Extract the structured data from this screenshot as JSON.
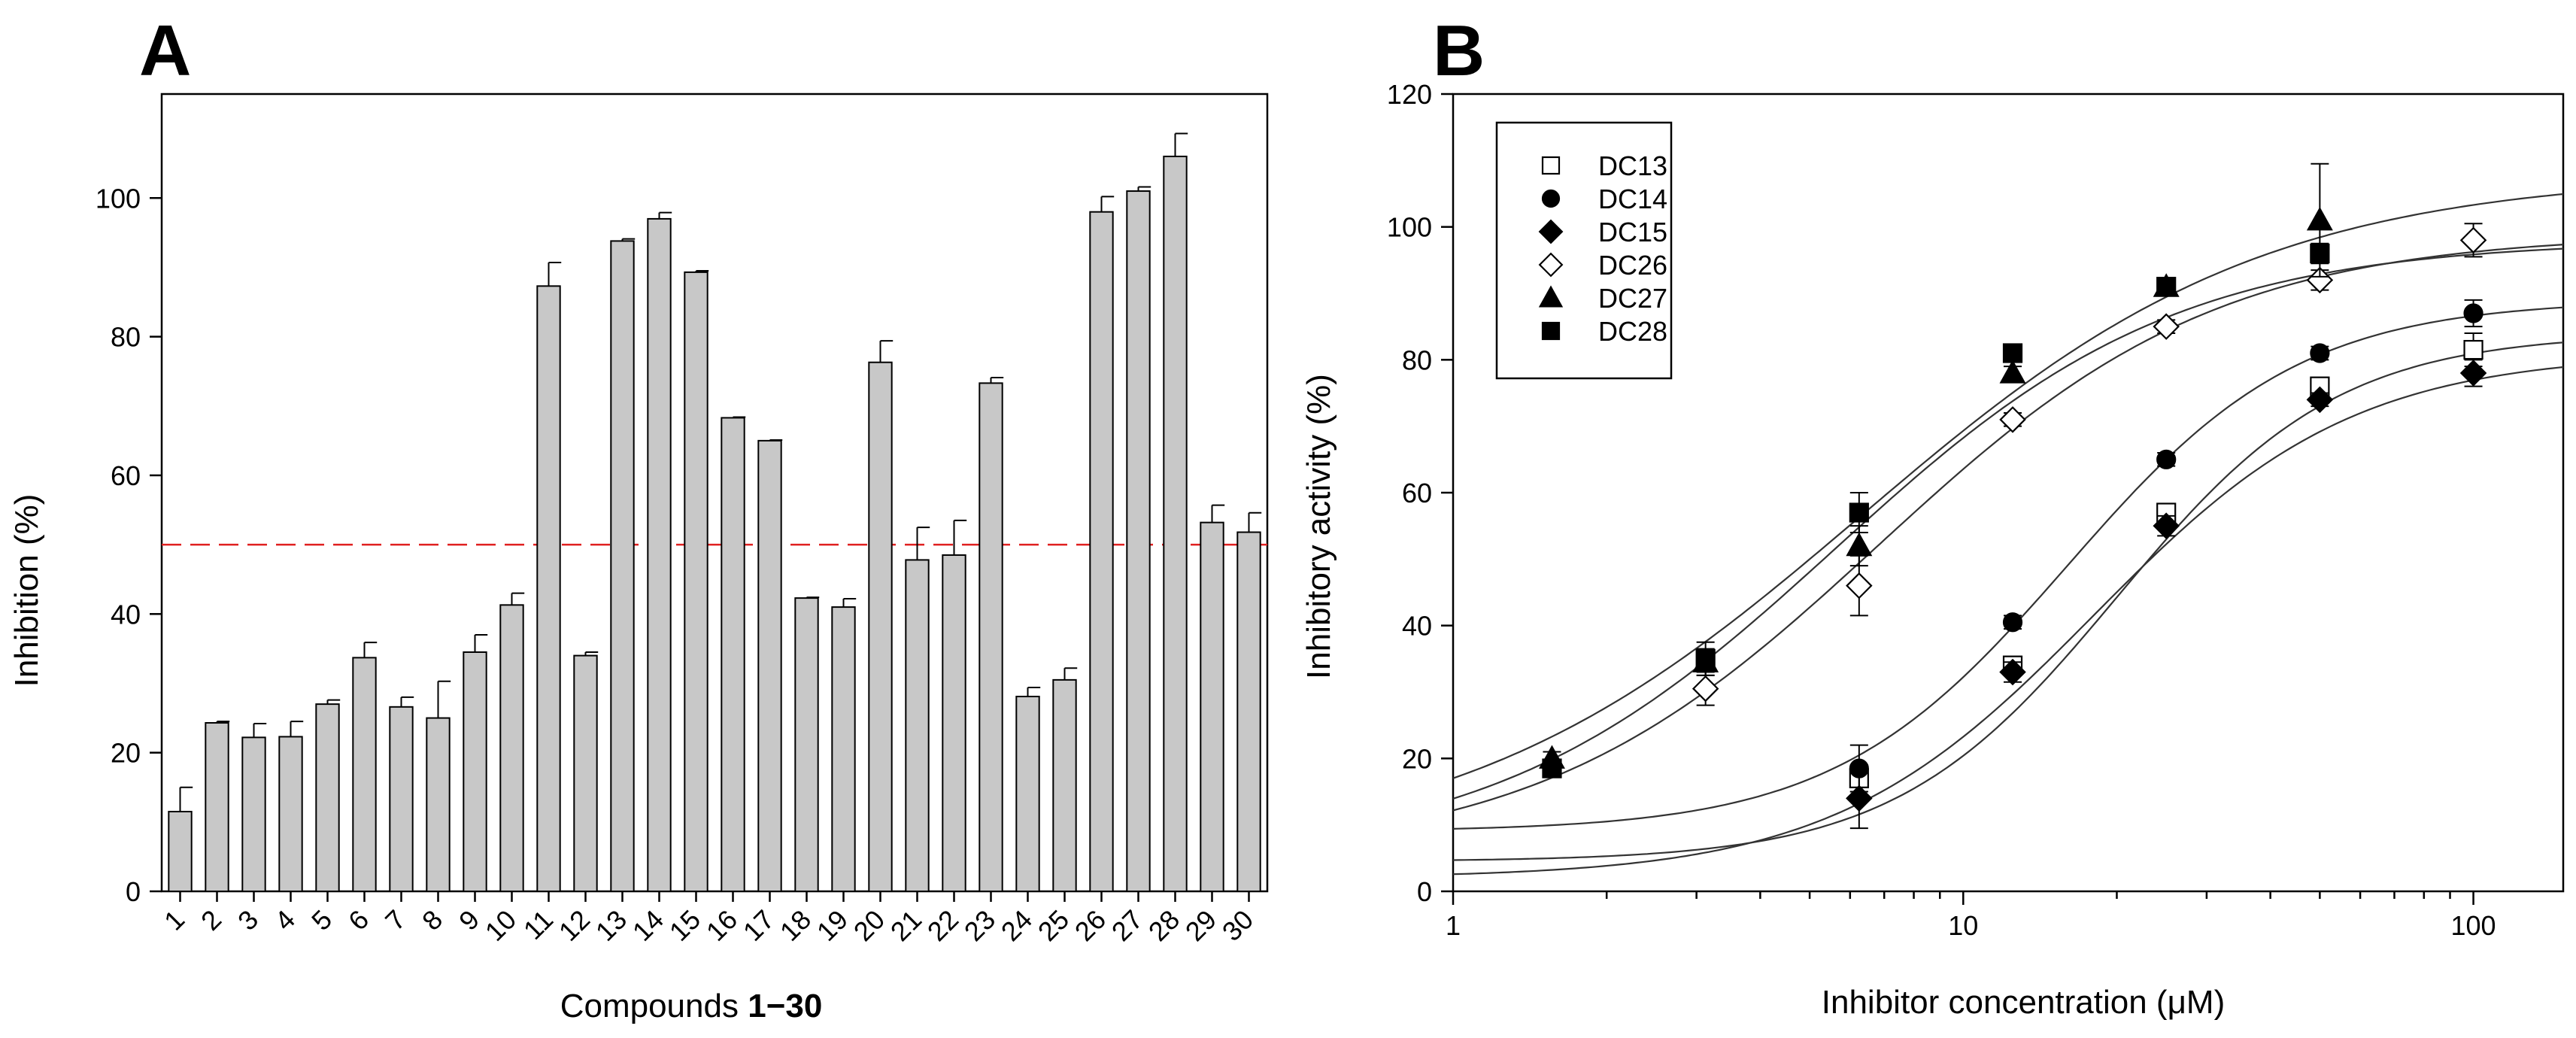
{
  "chart_data": [
    {
      "panel": "A",
      "type": "bar",
      "xlabel_prefix": "Compounds ",
      "xlabel_bold": "1−30",
      "ylabel": "Inhibition (%)",
      "ylim": [
        0,
        115
      ],
      "yticks": [
        0,
        20,
        40,
        60,
        80,
        100
      ],
      "categories": [
        "1",
        "2",
        "3",
        "4",
        "5",
        "6",
        "7",
        "8",
        "9",
        "10",
        "11",
        "12",
        "13",
        "14",
        "15",
        "16",
        "17",
        "18",
        "19",
        "20",
        "21",
        "22",
        "23",
        "24",
        "25",
        "26",
        "27",
        "28",
        "29",
        "30"
      ],
      "values": [
        11.5,
        24.3,
        22.2,
        22.3,
        27.0,
        33.7,
        26.6,
        25.0,
        34.5,
        41.3,
        87.3,
        34.0,
        93.8,
        97.0,
        89.3,
        68.3,
        65.0,
        42.3,
        41.0,
        76.3,
        47.8,
        48.5,
        73.3,
        28.1,
        30.5,
        98.0,
        101.0,
        106.0,
        53.2,
        51.8
      ],
      "errors": [
        3.5,
        0.2,
        2.0,
        2.2,
        0.6,
        2.2,
        1.4,
        5.3,
        2.5,
        1.7,
        3.4,
        0.5,
        0.3,
        0.9,
        0.2,
        0.1,
        0.1,
        0.1,
        1.2,
        3.1,
        4.7,
        5.0,
        0.8,
        1.3,
        1.7,
        2.2,
        0.6,
        3.3,
        2.5,
        2.8
      ],
      "reference_line": {
        "y": 50,
        "color": "#e02020",
        "style": "dashed"
      },
      "bar_color": "#c8c8c8"
    },
    {
      "panel": "B",
      "type": "scatter",
      "xscale": "log",
      "xlabel": "Inhibitor concentration (μM)",
      "ylabel": "Inhibitory activity (%)",
      "xlim": [
        1,
        150
      ],
      "ylim": [
        0,
        120
      ],
      "xticks": [
        1,
        10,
        100
      ],
      "yticks": [
        0,
        20,
        40,
        60,
        80,
        100,
        120
      ],
      "legend_position": "top-left",
      "series": [
        {
          "name": "DC13",
          "marker": "square-open",
          "x": [
            6.25,
            12.5,
            25,
            50,
            100
          ],
          "y": [
            17,
            34,
            57,
            76,
            81.5
          ],
          "err": [
            2,
            1,
            1,
            1,
            2.5
          ],
          "fit": {
            "bottom": 4.5,
            "top": 84,
            "ec50": 20,
            "hill": 2.0
          }
        },
        {
          "name": "DC14",
          "marker": "circle-filled",
          "x": [
            6.25,
            12.5,
            25,
            50,
            100
          ],
          "y": [
            18.5,
            40.5,
            65,
            81,
            87
          ],
          "err": [
            3.5,
            1,
            1,
            1,
            2
          ],
          "fit": {
            "bottom": 9,
            "top": 89,
            "ec50": 16,
            "hill": 1.9
          }
        },
        {
          "name": "DC15",
          "marker": "diamond-filled",
          "x": [
            6.25,
            12.5,
            25,
            50,
            100
          ],
          "y": [
            14,
            33,
            55,
            74,
            78
          ],
          "err": [
            4.5,
            1.5,
            1.5,
            1,
            2
          ],
          "fit": {
            "bottom": 2,
            "top": 81,
            "ec50": 18,
            "hill": 1.7
          }
        },
        {
          "name": "DC26",
          "marker": "diamond-open",
          "x": [
            3.125,
            6.25,
            12.5,
            25,
            50,
            100
          ],
          "y": [
            30.5,
            46,
            71,
            85,
            92,
            98
          ],
          "err": [
            2.5,
            4.5,
            1,
            1,
            1.5,
            2.5
          ],
          "fit": {
            "bottom": 5,
            "top": 99,
            "ec50": 6.8,
            "hill": 1.3
          }
        },
        {
          "name": "DC27",
          "marker": "triangle-filled",
          "x": [
            1.5625,
            3.125,
            6.25,
            12.5,
            25,
            50
          ],
          "y": [
            20,
            34.5,
            52,
            78,
            91,
            101
          ],
          "err": [
            1,
            2,
            3,
            1,
            1,
            8.5
          ],
          "fit": {
            "bottom": 5,
            "top": 108,
            "ec50": 6.3,
            "hill": 1.1
          }
        },
        {
          "name": "DC28",
          "marker": "square-filled",
          "x": [
            1.5625,
            3.125,
            6.25,
            12.5,
            25,
            50
          ],
          "y": [
            18.5,
            35,
            57,
            81,
            91,
            96
          ],
          "err": [
            1,
            2.5,
            3,
            1,
            1,
            1.5
          ],
          "fit": {
            "bottom": 5,
            "top": 98,
            "ec50": 5.6,
            "hill": 1.3
          }
        }
      ]
    }
  ]
}
